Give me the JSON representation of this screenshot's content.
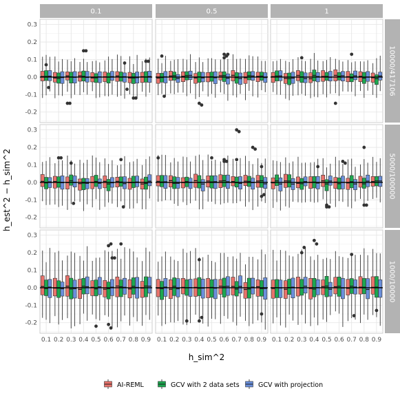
{
  "chart_data": {
    "type": "boxplot",
    "facet_cols": [
      "0.1",
      "0.5",
      "1"
    ],
    "facet_rows": [
      "10000/417106",
      "5000/100000",
      "1000/10000"
    ],
    "x_categories": [
      "0.1",
      "0.2",
      "0.3",
      "0.4",
      "0.5",
      "0.6",
      "0.7",
      "0.8",
      "0.9"
    ],
    "xlabel": "h_sim^2",
    "ylabel": "h_est^2 − h_sim^2",
    "ylim": [
      -0.26,
      0.33
    ],
    "yticks": [
      "0.3",
      "0.2",
      "0.1",
      "0.0",
      "-0.1",
      "-0.2"
    ],
    "ytick_values": [
      0.3,
      0.2,
      0.1,
      0.0,
      -0.1,
      -0.2
    ],
    "grid": true,
    "legend_position": "bottom",
    "series": [
      {
        "name": "AI-REML",
        "color": "#E8736C"
      },
      {
        "name": "GCV with 2 data sets",
        "color": "#1DA750"
      },
      {
        "name": "GCV with projection",
        "color": "#6A8FDB"
      }
    ],
    "row_spread": [
      {
        "box": 0.028,
        "whisker": 0.075
      },
      {
        "box": 0.032,
        "whisker": 0.095
      },
      {
        "box": 0.05,
        "whisker": 0.14
      }
    ],
    "outliers": [
      {
        "panel": [
          0,
          0
        ],
        "cat": 0,
        "series": 1,
        "values": [
          0.07,
          -0.06
        ]
      },
      {
        "panel": [
          0,
          0
        ],
        "cat": 2,
        "series": 0,
        "values": [
          -0.15,
          -0.15
        ]
      },
      {
        "panel": [
          0,
          0
        ],
        "cat": 3,
        "series": 1,
        "values": [
          0.15,
          0.15
        ]
      },
      {
        "panel": [
          0,
          0
        ],
        "cat": 6,
        "series": 2,
        "values": [
          0.08,
          -0.07
        ]
      },
      {
        "panel": [
          0,
          0
        ],
        "cat": 7,
        "series": 1,
        "values": [
          -0.12,
          -0.12
        ]
      },
      {
        "panel": [
          0,
          0
        ],
        "cat": 8,
        "series": 1,
        "values": [
          0.09,
          0.09
        ]
      },
      {
        "panel": [
          0,
          1
        ],
        "cat": 0,
        "series": 1,
        "values": [
          0.12,
          -0.11
        ]
      },
      {
        "panel": [
          0,
          1
        ],
        "cat": 3,
        "series": 1,
        "values": [
          -0.15,
          -0.16
        ]
      },
      {
        "panel": [
          0,
          1
        ],
        "cat": 5,
        "series": 1,
        "values": [
          0.11,
          0.12,
          0.13
        ]
      },
      {
        "panel": [
          0,
          1
        ],
        "cat": 5,
        "series": 2,
        "values": [
          0.13
        ]
      },
      {
        "panel": [
          0,
          2
        ],
        "cat": 2,
        "series": 1,
        "values": [
          0.11
        ]
      },
      {
        "panel": [
          0,
          2
        ],
        "cat": 5,
        "series": 0,
        "values": [
          -0.15
        ]
      },
      {
        "panel": [
          0,
          2
        ],
        "cat": 6,
        "series": 1,
        "values": [
          0.13
        ]
      },
      {
        "panel": [
          1,
          0
        ],
        "cat": 1,
        "series": 1,
        "values": [
          0.14,
          0.14
        ]
      },
      {
        "panel": [
          1,
          0
        ],
        "cat": 2,
        "series": 1,
        "values": [
          0.11,
          -0.12
        ]
      },
      {
        "panel": [
          1,
          0
        ],
        "cat": 6,
        "series": 1,
        "values": [
          0.13,
          -0.14
        ]
      },
      {
        "panel": [
          1,
          1
        ],
        "cat": 0,
        "series": 0,
        "values": [
          0.14
        ]
      },
      {
        "panel": [
          1,
          1
        ],
        "cat": 4,
        "series": 1,
        "values": [
          0.14
        ]
      },
      {
        "panel": [
          1,
          1
        ],
        "cat": 5,
        "series": 1,
        "values": [
          0.12,
          0.12,
          0.13
        ]
      },
      {
        "panel": [
          1,
          1
        ],
        "cat": 6,
        "series": 1,
        "values": [
          0.3,
          0.29,
          0.13
        ]
      },
      {
        "panel": [
          1,
          1
        ],
        "cat": 7,
        "series": 2,
        "values": [
          0.2,
          0.19
        ]
      },
      {
        "panel": [
          1,
          1
        ],
        "cat": 8,
        "series": 1,
        "values": [
          0.09,
          -0.07,
          -0.08
        ]
      },
      {
        "panel": [
          1,
          2
        ],
        "cat": 3,
        "series": 2,
        "values": [
          0.09
        ]
      },
      {
        "panel": [
          1,
          2
        ],
        "cat": 4,
        "series": 1,
        "values": [
          -0.13,
          -0.14,
          -0.14
        ]
      },
      {
        "panel": [
          1,
          2
        ],
        "cat": 5,
        "series": 2,
        "values": [
          0.12,
          0.11
        ]
      },
      {
        "panel": [
          1,
          2
        ],
        "cat": 7,
        "series": 1,
        "values": [
          0.2,
          -0.13,
          -0.13
        ]
      },
      {
        "panel": [
          2,
          0
        ],
        "cat": 4,
        "series": 1,
        "values": [
          -0.22
        ]
      },
      {
        "panel": [
          2,
          0
        ],
        "cat": 5,
        "series": 1,
        "values": [
          0.24,
          0.25,
          -0.21,
          -0.23
        ]
      },
      {
        "panel": [
          2,
          0
        ],
        "cat": 5,
        "series": 2,
        "values": [
          0.17,
          0.17
        ]
      },
      {
        "panel": [
          2,
          0
        ],
        "cat": 6,
        "series": 1,
        "values": [
          0.25
        ]
      },
      {
        "panel": [
          2,
          1
        ],
        "cat": 2,
        "series": 1,
        "values": [
          -0.19
        ]
      },
      {
        "panel": [
          2,
          1
        ],
        "cat": 3,
        "series": 1,
        "values": [
          0.16,
          -0.17,
          -0.19
        ]
      },
      {
        "panel": [
          2,
          1
        ],
        "cat": 8,
        "series": 1,
        "values": [
          -0.15
        ]
      },
      {
        "panel": [
          2,
          2
        ],
        "cat": 2,
        "series": 1,
        "values": [
          0.2,
          0.23
        ]
      },
      {
        "panel": [
          2,
          2
        ],
        "cat": 3,
        "series": 1,
        "values": [
          0.27,
          0.25
        ]
      },
      {
        "panel": [
          2,
          2
        ],
        "cat": 6,
        "series": 1,
        "values": [
          0.19,
          -0.16
        ]
      },
      {
        "panel": [
          2,
          2
        ],
        "cat": 8,
        "series": 1,
        "values": [
          -0.13
        ]
      }
    ]
  }
}
